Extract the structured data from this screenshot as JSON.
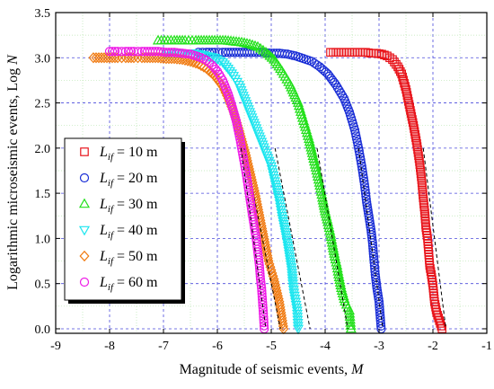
{
  "chart_data": {
    "type": "scatter",
    "title": "",
    "xlabel": "Magnitude of seismic events, ",
    "xlabel_var": "M",
    "ylabel": "Logarithmic microseismic events, Log ",
    "ylabel_var": "N",
    "xlim": [
      -9,
      -1
    ],
    "ylim": [
      -0.05,
      3.5
    ],
    "xticks": [
      -9,
      -8,
      -7,
      -6,
      -5,
      -4,
      -3,
      -2,
      -1
    ],
    "yticks": [
      0.0,
      0.5,
      1.0,
      1.5,
      2.0,
      2.5,
      3.0,
      3.5
    ],
    "xtick_labels": [
      "-9",
      "-8",
      "-7",
      "-6",
      "-5",
      "-4",
      "-3",
      "-2",
      "-1"
    ],
    "ytick_labels": [
      "0.0",
      "0.5",
      "1.0",
      "1.5",
      "2.0",
      "2.5",
      "3.0",
      "3.5"
    ],
    "grid": true,
    "legend_position": "center-left",
    "series": [
      {
        "name_main": "L",
        "name_sub": "if",
        "name_rest": " = 10 m",
        "marker": "square",
        "color": "#e8141b",
        "x": [
          -3.9,
          -3.85,
          -3.75,
          -3.65,
          -3.55,
          -3.45,
          -3.35,
          -3.25,
          -3.15,
          -3.05,
          -2.95,
          -2.85,
          -2.75,
          -2.65,
          -2.58,
          -2.5,
          -2.43,
          -2.36,
          -2.3,
          -2.25,
          -2.21,
          -2.18,
          -2.15,
          -2.13,
          -2.1,
          -2.08,
          -2.06,
          -2.03,
          -2.0,
          -1.97,
          -1.93,
          -1.83
        ],
        "y": [
          3.06,
          3.06,
          3.06,
          3.06,
          3.06,
          3.06,
          3.06,
          3.06,
          3.05,
          3.05,
          3.04,
          3.02,
          2.98,
          2.9,
          2.82,
          2.65,
          2.45,
          2.25,
          2.05,
          1.85,
          1.65,
          1.45,
          1.28,
          1.12,
          1.0,
          0.85,
          0.7,
          0.6,
          0.48,
          0.3,
          0.18,
          0.0
        ],
        "fit_x": [
          -2.18,
          -1.76
        ],
        "fit_y": [
          2.0,
          0.0
        ]
      },
      {
        "name_main": "L",
        "name_sub": "if",
        "name_rest": " = 20 m",
        "marker": "circle",
        "color": "#1b2fd6",
        "x": [
          -6.35,
          -6.2,
          -6.05,
          -5.9,
          -5.75,
          -5.6,
          -5.45,
          -5.3,
          -5.15,
          -5.0,
          -4.85,
          -4.7,
          -4.55,
          -4.4,
          -4.25,
          -4.1,
          -3.95,
          -3.8,
          -3.65,
          -3.55,
          -3.45,
          -3.38,
          -3.32,
          -3.27,
          -3.23,
          -3.19,
          -3.15,
          -3.12,
          -3.1,
          -3.07,
          -3.04,
          -3.0,
          -2.96
        ],
        "y": [
          3.06,
          3.06,
          3.06,
          3.06,
          3.06,
          3.06,
          3.06,
          3.06,
          3.06,
          3.05,
          3.05,
          3.04,
          3.02,
          2.99,
          2.96,
          2.9,
          2.82,
          2.7,
          2.55,
          2.4,
          2.2,
          2.0,
          1.8,
          1.6,
          1.4,
          1.25,
          1.1,
          0.95,
          0.8,
          0.6,
          0.45,
          0.3,
          0.0
        ],
        "fit_x": [
          -3.38,
          -2.93
        ],
        "fit_y": [
          2.0,
          0.0
        ]
      },
      {
        "name_main": "L",
        "name_sub": "if",
        "name_rest": " = 30 m",
        "marker": "triangle-up",
        "color": "#22e01a",
        "x": [
          -7.1,
          -6.8,
          -6.6,
          -6.4,
          -6.2,
          -6.0,
          -5.85,
          -5.7,
          -5.55,
          -5.4,
          -5.25,
          -5.1,
          -4.95,
          -4.8,
          -4.65,
          -4.5,
          -4.4,
          -4.3,
          -4.2,
          -4.12,
          -4.05,
          -4.0,
          -3.95,
          -3.9,
          -3.86,
          -3.82,
          -3.78,
          -3.75,
          -3.7,
          -3.63,
          -3.55,
          -3.52
        ],
        "y": [
          3.19,
          3.19,
          3.19,
          3.19,
          3.19,
          3.19,
          3.19,
          3.18,
          3.17,
          3.15,
          3.12,
          3.06,
          2.98,
          2.85,
          2.7,
          2.5,
          2.3,
          2.1,
          1.85,
          1.65,
          1.45,
          1.3,
          1.18,
          1.05,
          0.92,
          0.8,
          0.7,
          0.6,
          0.45,
          0.3,
          0.2,
          0.0
        ],
        "fit_x": [
          -4.15,
          -3.58
        ],
        "fit_y": [
          2.0,
          0.0
        ]
      },
      {
        "name_main": "L",
        "name_sub": "if",
        "name_rest": " = 40 m",
        "marker": "triangle-down",
        "color": "#1ce6ef",
        "x": [
          -6.95,
          -6.8,
          -6.65,
          -6.5,
          -6.35,
          -6.2,
          -6.05,
          -5.9,
          -5.8,
          -5.7,
          -5.6,
          -5.5,
          -5.4,
          -5.3,
          -5.2,
          -5.1,
          -5.0,
          -4.92,
          -4.85,
          -4.8,
          -4.75,
          -4.7,
          -4.66,
          -4.62,
          -4.6,
          -4.58,
          -4.55,
          -4.52,
          -4.5
        ],
        "y": [
          3.05,
          3.05,
          3.05,
          3.05,
          3.04,
          3.02,
          3.0,
          2.95,
          2.88,
          2.8,
          2.7,
          2.55,
          2.4,
          2.25,
          2.1,
          1.95,
          1.8,
          1.6,
          1.42,
          1.25,
          1.1,
          0.95,
          0.8,
          0.65,
          0.5,
          0.4,
          0.3,
          0.2,
          0.0
        ],
        "fit_x": [
          -4.93,
          -4.28
        ],
        "fit_y": [
          2.0,
          0.0
        ]
      },
      {
        "name_main": "L",
        "name_sub": "if",
        "name_rest": " = 50 m",
        "marker": "diamond",
        "color": "#f07a10",
        "x": [
          -8.3,
          -8.15,
          -8.0,
          -7.85,
          -7.7,
          -7.55,
          -7.4,
          -7.25,
          -7.1,
          -6.95,
          -6.8,
          -6.65,
          -6.5,
          -6.35,
          -6.2,
          -6.05,
          -5.9,
          -5.8,
          -5.7,
          -5.62,
          -5.55,
          -5.48,
          -5.42,
          -5.36,
          -5.3,
          -5.25,
          -5.2,
          -5.15,
          -5.1,
          -5.05,
          -4.95,
          -4.85,
          -4.77
        ],
        "y": [
          3.0,
          3.0,
          3.0,
          3.0,
          3.0,
          3.0,
          3.0,
          3.0,
          3.0,
          2.99,
          2.99,
          2.98,
          2.96,
          2.93,
          2.88,
          2.8,
          2.68,
          2.55,
          2.4,
          2.25,
          2.1,
          1.95,
          1.8,
          1.65,
          1.5,
          1.35,
          1.2,
          1.05,
          0.9,
          0.75,
          0.55,
          0.3,
          0.0
        ],
        "fit_x": [
          -5.5,
          -4.83
        ],
        "fit_y": [
          2.0,
          0.0
        ]
      },
      {
        "name_main": "L",
        "name_sub": "if",
        "name_rest": " = 60 m",
        "marker": "circle",
        "color": "#ee1ce6",
        "x": [
          -8.0,
          -7.85,
          -7.7,
          -7.55,
          -7.4,
          -7.25,
          -7.1,
          -6.95,
          -6.8,
          -6.65,
          -6.5,
          -6.4,
          -6.3,
          -6.2,
          -6.1,
          -6.0,
          -5.9,
          -5.8,
          -5.72,
          -5.65,
          -5.58,
          -5.52,
          -5.46,
          -5.41,
          -5.36,
          -5.32,
          -5.28,
          -5.25,
          -5.22,
          -5.2,
          -5.18,
          -5.15,
          -5.13
        ],
        "y": [
          3.07,
          3.07,
          3.07,
          3.07,
          3.07,
          3.07,
          3.07,
          3.06,
          3.06,
          3.05,
          3.04,
          3.02,
          3.0,
          2.97,
          2.92,
          2.85,
          2.75,
          2.6,
          2.45,
          2.3,
          2.1,
          1.9,
          1.7,
          1.5,
          1.3,
          1.15,
          1.0,
          0.85,
          0.7,
          0.55,
          0.45,
          0.2,
          0.0
        ],
        "fit_x": [
          -5.56,
          -5.1
        ],
        "fit_y": [
          2.0,
          0.0
        ]
      }
    ]
  }
}
